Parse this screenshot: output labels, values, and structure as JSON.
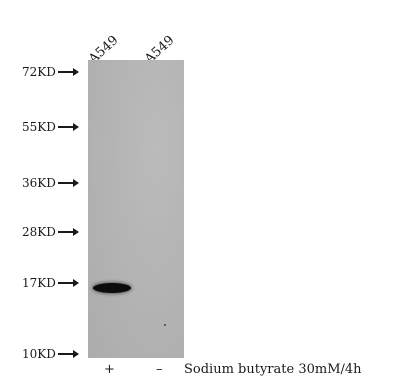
{
  "lanes": [
    "A549",
    "A549"
  ],
  "markers": [
    "72KD",
    "55KD",
    "36KD",
    "28KD",
    "17KD",
    "10KD"
  ],
  "treatment": {
    "lane1_sign": "+",
    "lane2_sign": "–",
    "label": "Sodium butyrate 30mM/4h"
  },
  "colors": {
    "membrane": "#b4b4b4",
    "band": "#0c0c0c"
  }
}
